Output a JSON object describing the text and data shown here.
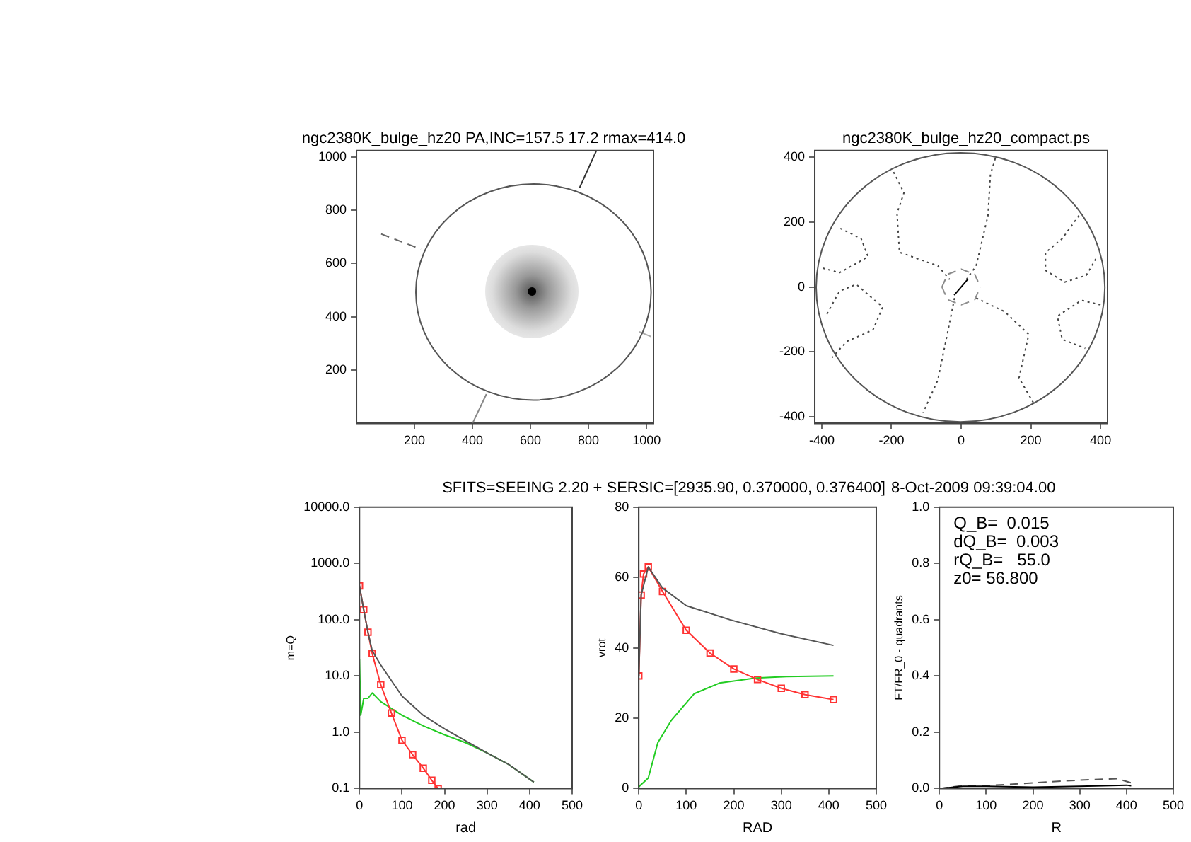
{
  "chart_data": [
    {
      "type": "line",
      "title": "ngc2380K_bulge_hz20 PA,INC=157.5 17.2 rmax=414.0",
      "xlim": [
        0,
        1024
      ],
      "ylim": [
        0,
        1024
      ],
      "xticks": [
        200,
        400,
        600,
        800,
        1000
      ],
      "yticks": [
        200,
        400,
        600,
        800,
        1000
      ],
      "grid": false,
      "series": [
        {
          "color": "#333333",
          "line_style": "solid",
          "x": [
            769,
            827
          ],
          "values": [
            884,
            1023
          ]
        },
        {
          "color": "#888888",
          "line_style": "solid",
          "x": [
            400,
            448
          ],
          "values": [
            0,
            110
          ]
        },
        {
          "color": "#666666",
          "line_style": "dashed",
          "x": [
            85,
            222
          ],
          "values": [
            711,
            654
          ]
        },
        {
          "color": "#aaaaaa",
          "line_style": "solid",
          "x": [
            975,
            1015
          ],
          "values": [
            344,
            326
          ]
        },
        {
          "type": "scatter",
          "marker": "circle",
          "color": "#000000",
          "x": [
            605
          ],
          "values": [
            495
          ]
        }
      ]
    },
    {
      "type": "line",
      "title": "ngc2380K_bulge_hz20_compact.ps",
      "xlim": [
        -420,
        420
      ],
      "ylim": [
        -420,
        420
      ],
      "xticks": [
        -400,
        -200,
        0,
        200,
        400
      ],
      "yticks": [
        -400,
        -200,
        0,
        200,
        400
      ],
      "grid": false,
      "series": [
        {
          "color": "#888888",
          "line_style": "dashed",
          "x": [
            -55,
            -39,
            0,
            39,
            55
          ],
          "values": [
            0,
            39,
            55,
            39,
            0
          ]
        },
        {
          "color": "#8f8f8f",
          "line_style": "dashed",
          "x": [
            -55,
            -39,
            0,
            39,
            55
          ],
          "values": [
            0,
            -39,
            -55,
            -39,
            0
          ]
        },
        {
          "color": "#000000",
          "line_style": "solid",
          "x": [
            -20,
            20
          ],
          "values": [
            -25,
            25
          ]
        },
        {
          "color": "#444444",
          "line_style": "dotted",
          "x": [
            -194,
            -164,
            -184,
            -177,
            -67,
            -33
          ],
          "values": [
            354,
            290,
            227,
            107,
            65,
            23
          ]
        },
        {
          "color": "#444444",
          "line_style": "dotted",
          "x": [
            98,
            84,
            77,
            43,
            15
          ],
          "values": [
            396,
            346,
            220,
            65,
            23
          ]
        },
        {
          "color": "#444444",
          "line_style": "dotted",
          "x": [
            -397,
            -349,
            -267,
            -287,
            -356
          ],
          "values": [
            58,
            44,
            93,
            149,
            185
          ]
        },
        {
          "color": "#444444",
          "line_style": "dotted",
          "x": [
            -385,
            -349,
            -301,
            -225,
            -253,
            -329,
            -370
          ],
          "values": [
            -83,
            -13,
            8,
            -62,
            -132,
            -168,
            -217
          ]
        },
        {
          "color": "#444444",
          "line_style": "dotted",
          "x": [
            -19,
            -40,
            -67,
            -109
          ],
          "values": [
            -34,
            -146,
            -287,
            -386
          ]
        },
        {
          "color": "#444444",
          "line_style": "dotted",
          "x": [
            43,
            125,
            194,
            166,
            208
          ],
          "values": [
            -34,
            -76,
            -146,
            -280,
            -358
          ]
        },
        {
          "color": "#444444",
          "line_style": "dotted",
          "x": [
            338,
            290,
            242,
            242,
            297,
            359,
            386
          ],
          "values": [
            220,
            149,
            106,
            51,
            15,
            36,
            86
          ]
        },
        {
          "color": "#444444",
          "line_style": "dotted",
          "x": [
            400,
            345,
            276,
            290,
            356
          ],
          "values": [
            -55,
            -41,
            -90,
            -161,
            -189
          ]
        }
      ]
    },
    {
      "type": "line",
      "xlabel": "rad",
      "ylabel": "m=Q",
      "log": "y",
      "xlim": [
        0,
        500
      ],
      "ylim": [
        0.1,
        10000
      ],
      "xticks": [
        0,
        100,
        200,
        300,
        400,
        500
      ],
      "yticks": [
        {
          "value": 0.1,
          "label": "0.1"
        },
        {
          "value": 1,
          "label": "1.0"
        },
        {
          "value": 10,
          "label": "10.0"
        },
        {
          "value": 100,
          "label": "100.0"
        },
        {
          "value": 1000,
          "label": "1000.0"
        },
        {
          "value": 10000,
          "label": "10000.0"
        }
      ],
      "grid": false,
      "series": [
        {
          "color": "#555555",
          "line_style": "solid",
          "x": [
            0,
            10,
            20,
            30,
            50,
            100,
            150,
            200,
            250,
            300,
            350,
            410
          ],
          "values": [
            400,
            150,
            60,
            28,
            15.7,
            4.4,
            2.0,
            1.15,
            0.7,
            0.43,
            0.27,
            0.13
          ]
        },
        {
          "color": "#ff3333",
          "line_style": "solid",
          "marker": "square",
          "x": [
            0,
            10,
            20,
            30,
            50,
            75,
            100,
            125,
            150,
            170,
            185
          ],
          "values": [
            400,
            150,
            60,
            25,
            7,
            2.2,
            0.72,
            0.4,
            0.23,
            0.14,
            0.1
          ]
        },
        {
          "color": "#22cc22",
          "line_style": "solid",
          "x": [
            0,
            3,
            10,
            20,
            30,
            50,
            100,
            150,
            200,
            250,
            300,
            350,
            410
          ],
          "values": [
            20,
            2,
            4,
            4,
            5,
            3.5,
            2.0,
            1.3,
            0.9,
            0.65,
            0.43,
            0.27,
            0.13
          ]
        }
      ]
    },
    {
      "type": "line",
      "title": "SFITS=SEEING 2.20 + SERSIC=[2935.90, 0.370000, 0.376400]",
      "xlabel": "RAD",
      "ylabel": "vrot",
      "xlim": [
        0,
        500
      ],
      "ylim": [
        0,
        80
      ],
      "xticks": [
        0,
        100,
        200,
        300,
        400,
        500
      ],
      "yticks": [
        0,
        20,
        40,
        60,
        80
      ],
      "grid": false,
      "series": [
        {
          "color": "#555555",
          "line_style": "solid",
          "x": [
            0,
            5,
            20,
            50,
            100,
            192,
            300,
            410
          ],
          "values": [
            32,
            55,
            63,
            57,
            52,
            48,
            44,
            40.7
          ]
        },
        {
          "color": "#ff3333",
          "line_style": "solid",
          "marker": "square",
          "x": [
            0,
            5,
            10,
            20,
            50,
            100,
            150,
            200,
            250,
            300,
            350,
            410
          ],
          "values": [
            32,
            55,
            61,
            63,
            56,
            45,
            38.5,
            34,
            31,
            28.5,
            26.7,
            25.3
          ]
        },
        {
          "color": "#22cc22",
          "line_style": "solid",
          "x": [
            0,
            20,
            40,
            68,
            117,
            170,
            246,
            311,
            410
          ],
          "values": [
            0.5,
            3,
            13,
            19.3,
            27,
            30,
            31.4,
            31.8,
            32
          ]
        }
      ]
    },
    {
      "type": "line",
      "title": "8-Oct-2009 09:39:04.00",
      "xlabel": "R",
      "ylabel": "FT/FR_0 - quadrants",
      "xlim": [
        0,
        500
      ],
      "ylim": [
        0,
        1
      ],
      "xticks": [
        0,
        100,
        200,
        300,
        400,
        500
      ],
      "yticks": [
        {
          "value": 0,
          "label": "0.0"
        },
        {
          "value": 0.2,
          "label": "0.2"
        },
        {
          "value": 0.4,
          "label": "0.4"
        },
        {
          "value": 0.6,
          "label": "0.6"
        },
        {
          "value": 0.8,
          "label": "0.8"
        },
        {
          "value": 1,
          "label": "1.0"
        }
      ],
      "grid": false,
      "annotations": [
        "Q_B=  0.015",
        "dQ_B=  0.003",
        "rQ_B=   55.0",
        "z0= 56.800"
      ],
      "series": [
        {
          "color": "#000000",
          "line_style": "solid",
          "x": [
            0,
            50,
            100,
            200,
            300,
            400,
            410
          ],
          "values": [
            0,
            0.008,
            0.008,
            0.005,
            0.008,
            0.012,
            0.01
          ]
        },
        {
          "color": "#555555",
          "line_style": "dashed",
          "x": [
            0,
            50,
            100,
            200,
            300,
            380,
            410
          ],
          "values": [
            0,
            0.01,
            0.01,
            0.02,
            0.03,
            0.035,
            0.02
          ]
        }
      ]
    }
  ]
}
